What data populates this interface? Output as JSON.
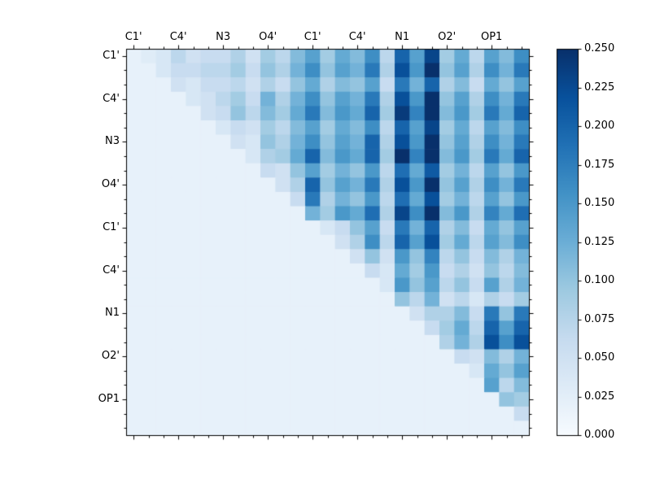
{
  "chart_data": {
    "type": "heatmap",
    "title": "",
    "xlabel": "",
    "ylabel": "",
    "x_labels": [
      "C1'",
      "C4'",
      "N3",
      "O4'",
      "C1'",
      "C4'",
      "N1",
      "O2'",
      "OP1"
    ],
    "y_labels": [
      "C1'",
      "C4'",
      "N3",
      "O4'",
      "C1'",
      "C4'",
      "N1",
      "O2'",
      "OP1"
    ],
    "grid_size": 27,
    "cells_per_label": 3,
    "vmin": 0.0,
    "vmax": 0.25,
    "colormap": "Blues",
    "structure": "upper-triangular",
    "colorbar_ticks": [
      "0.250",
      "0.225",
      "0.200",
      "0.175",
      "0.150",
      "0.125",
      "0.100",
      "0.075",
      "0.050",
      "0.025",
      "0.000"
    ],
    "colorbar_tick_values": [
      0.25,
      0.225,
      0.2,
      0.175,
      0.15,
      0.125,
      0.1,
      0.075,
      0.05,
      0.025,
      0.0
    ],
    "matrix": [
      [
        0.02,
        0.03,
        0.04,
        0.07,
        0.05,
        0.06,
        0.06,
        0.08,
        0.05,
        0.09,
        0.07,
        0.11,
        0.14,
        0.09,
        0.13,
        0.11,
        0.16,
        0.07,
        0.2,
        0.14,
        0.23,
        0.09,
        0.13,
        0.07,
        0.14,
        0.11,
        0.16
      ],
      [
        0.02,
        0.02,
        0.04,
        0.06,
        0.06,
        0.07,
        0.07,
        0.09,
        0.06,
        0.1,
        0.08,
        0.12,
        0.16,
        0.1,
        0.14,
        0.12,
        0.18,
        0.08,
        0.22,
        0.15,
        0.25,
        0.1,
        0.14,
        0.08,
        0.16,
        0.12,
        0.18
      ],
      [
        0.02,
        0.02,
        0.02,
        0.05,
        0.04,
        0.06,
        0.06,
        0.07,
        0.05,
        0.08,
        0.06,
        0.1,
        0.13,
        0.08,
        0.11,
        0.1,
        0.14,
        0.06,
        0.18,
        0.12,
        0.2,
        0.08,
        0.11,
        0.06,
        0.13,
        0.1,
        0.14
      ],
      [
        0.02,
        0.02,
        0.02,
        0.02,
        0.04,
        0.05,
        0.07,
        0.09,
        0.06,
        0.12,
        0.08,
        0.12,
        0.16,
        0.1,
        0.14,
        0.12,
        0.18,
        0.08,
        0.22,
        0.15,
        0.25,
        0.1,
        0.14,
        0.08,
        0.16,
        0.12,
        0.18
      ],
      [
        0.02,
        0.02,
        0.02,
        0.02,
        0.02,
        0.05,
        0.06,
        0.1,
        0.07,
        0.11,
        0.09,
        0.13,
        0.18,
        0.11,
        0.15,
        0.13,
        0.2,
        0.09,
        0.24,
        0.17,
        0.25,
        0.11,
        0.15,
        0.09,
        0.18,
        0.13,
        0.2
      ],
      [
        0.02,
        0.02,
        0.02,
        0.02,
        0.02,
        0.02,
        0.04,
        0.06,
        0.05,
        0.09,
        0.07,
        0.11,
        0.14,
        0.09,
        0.13,
        0.11,
        0.16,
        0.07,
        0.2,
        0.14,
        0.23,
        0.09,
        0.13,
        0.07,
        0.14,
        0.11,
        0.16
      ],
      [
        0.02,
        0.02,
        0.02,
        0.02,
        0.02,
        0.02,
        0.02,
        0.05,
        0.04,
        0.1,
        0.08,
        0.12,
        0.16,
        0.1,
        0.14,
        0.12,
        0.2,
        0.08,
        0.22,
        0.15,
        0.25,
        0.1,
        0.14,
        0.08,
        0.16,
        0.12,
        0.18
      ],
      [
        0.02,
        0.02,
        0.02,
        0.02,
        0.02,
        0.02,
        0.02,
        0.02,
        0.04,
        0.08,
        0.09,
        0.13,
        0.2,
        0.11,
        0.15,
        0.13,
        0.2,
        0.09,
        0.25,
        0.17,
        0.25,
        0.11,
        0.15,
        0.09,
        0.18,
        0.13,
        0.2
      ],
      [
        0.02,
        0.02,
        0.02,
        0.02,
        0.02,
        0.02,
        0.02,
        0.02,
        0.02,
        0.06,
        0.05,
        0.1,
        0.14,
        0.09,
        0.12,
        0.1,
        0.15,
        0.07,
        0.19,
        0.13,
        0.21,
        0.09,
        0.12,
        0.07,
        0.14,
        0.1,
        0.15
      ],
      [
        0.02,
        0.02,
        0.02,
        0.02,
        0.02,
        0.02,
        0.02,
        0.02,
        0.02,
        0.02,
        0.05,
        0.08,
        0.2,
        0.1,
        0.14,
        0.12,
        0.18,
        0.08,
        0.22,
        0.15,
        0.25,
        0.1,
        0.14,
        0.08,
        0.16,
        0.12,
        0.18
      ],
      [
        0.02,
        0.02,
        0.02,
        0.02,
        0.02,
        0.02,
        0.02,
        0.02,
        0.02,
        0.02,
        0.02,
        0.06,
        0.18,
        0.08,
        0.12,
        0.1,
        0.15,
        0.07,
        0.19,
        0.13,
        0.22,
        0.09,
        0.12,
        0.07,
        0.14,
        0.1,
        0.15
      ],
      [
        0.02,
        0.02,
        0.02,
        0.02,
        0.02,
        0.02,
        0.02,
        0.02,
        0.02,
        0.02,
        0.02,
        0.02,
        0.12,
        0.09,
        0.15,
        0.13,
        0.19,
        0.08,
        0.23,
        0.16,
        0.25,
        0.11,
        0.15,
        0.08,
        0.17,
        0.13,
        0.19
      ],
      [
        0.02,
        0.02,
        0.02,
        0.02,
        0.02,
        0.02,
        0.02,
        0.02,
        0.02,
        0.02,
        0.02,
        0.02,
        0.02,
        0.04,
        0.06,
        0.1,
        0.14,
        0.06,
        0.18,
        0.12,
        0.2,
        0.08,
        0.11,
        0.06,
        0.13,
        0.1,
        0.14
      ],
      [
        0.02,
        0.02,
        0.02,
        0.02,
        0.02,
        0.02,
        0.02,
        0.02,
        0.02,
        0.02,
        0.02,
        0.02,
        0.02,
        0.02,
        0.05,
        0.08,
        0.16,
        0.07,
        0.2,
        0.14,
        0.22,
        0.09,
        0.13,
        0.07,
        0.14,
        0.11,
        0.16
      ],
      [
        0.02,
        0.02,
        0.02,
        0.02,
        0.02,
        0.02,
        0.02,
        0.02,
        0.02,
        0.02,
        0.02,
        0.02,
        0.02,
        0.02,
        0.02,
        0.05,
        0.1,
        0.05,
        0.15,
        0.1,
        0.17,
        0.07,
        0.1,
        0.06,
        0.11,
        0.08,
        0.12
      ],
      [
        0.02,
        0.02,
        0.02,
        0.02,
        0.02,
        0.02,
        0.02,
        0.02,
        0.02,
        0.02,
        0.02,
        0.02,
        0.02,
        0.02,
        0.02,
        0.02,
        0.06,
        0.04,
        0.13,
        0.09,
        0.15,
        0.06,
        0.08,
        0.05,
        0.1,
        0.07,
        0.11
      ],
      [
        0.02,
        0.02,
        0.02,
        0.02,
        0.02,
        0.02,
        0.02,
        0.02,
        0.02,
        0.02,
        0.02,
        0.02,
        0.02,
        0.02,
        0.02,
        0.02,
        0.02,
        0.04,
        0.15,
        0.1,
        0.14,
        0.07,
        0.1,
        0.06,
        0.14,
        0.08,
        0.12
      ],
      [
        0.02,
        0.02,
        0.02,
        0.02,
        0.02,
        0.02,
        0.02,
        0.02,
        0.02,
        0.02,
        0.02,
        0.02,
        0.02,
        0.02,
        0.02,
        0.02,
        0.02,
        0.02,
        0.1,
        0.07,
        0.12,
        0.05,
        0.07,
        0.04,
        0.08,
        0.06,
        0.09
      ],
      [
        0.02,
        0.02,
        0.02,
        0.02,
        0.02,
        0.02,
        0.02,
        0.02,
        0.02,
        0.02,
        0.02,
        0.02,
        0.02,
        0.02,
        0.02,
        0.02,
        0.02,
        0.02,
        0.02,
        0.05,
        0.08,
        0.08,
        0.11,
        0.06,
        0.18,
        0.1,
        0.18
      ],
      [
        0.02,
        0.02,
        0.02,
        0.02,
        0.02,
        0.02,
        0.02,
        0.02,
        0.02,
        0.02,
        0.02,
        0.02,
        0.02,
        0.02,
        0.02,
        0.02,
        0.02,
        0.02,
        0.02,
        0.02,
        0.06,
        0.09,
        0.13,
        0.07,
        0.2,
        0.14,
        0.2
      ],
      [
        0.02,
        0.02,
        0.02,
        0.02,
        0.02,
        0.02,
        0.02,
        0.02,
        0.02,
        0.02,
        0.02,
        0.02,
        0.02,
        0.02,
        0.02,
        0.02,
        0.02,
        0.02,
        0.02,
        0.02,
        0.02,
        0.08,
        0.12,
        0.08,
        0.22,
        0.16,
        0.22
      ],
      [
        0.02,
        0.02,
        0.02,
        0.02,
        0.02,
        0.02,
        0.02,
        0.02,
        0.02,
        0.02,
        0.02,
        0.02,
        0.02,
        0.02,
        0.02,
        0.02,
        0.02,
        0.02,
        0.02,
        0.02,
        0.02,
        0.02,
        0.06,
        0.05,
        0.11,
        0.08,
        0.12
      ],
      [
        0.02,
        0.02,
        0.02,
        0.02,
        0.02,
        0.02,
        0.02,
        0.02,
        0.02,
        0.02,
        0.02,
        0.02,
        0.02,
        0.02,
        0.02,
        0.02,
        0.02,
        0.02,
        0.02,
        0.02,
        0.02,
        0.02,
        0.02,
        0.04,
        0.13,
        0.1,
        0.14
      ],
      [
        0.02,
        0.02,
        0.02,
        0.02,
        0.02,
        0.02,
        0.02,
        0.02,
        0.02,
        0.02,
        0.02,
        0.02,
        0.02,
        0.02,
        0.02,
        0.02,
        0.02,
        0.02,
        0.02,
        0.02,
        0.02,
        0.02,
        0.02,
        0.02,
        0.14,
        0.07,
        0.11
      ],
      [
        0.02,
        0.02,
        0.02,
        0.02,
        0.02,
        0.02,
        0.02,
        0.02,
        0.02,
        0.02,
        0.02,
        0.02,
        0.02,
        0.02,
        0.02,
        0.02,
        0.02,
        0.02,
        0.02,
        0.02,
        0.02,
        0.02,
        0.02,
        0.02,
        0.02,
        0.1,
        0.09
      ],
      [
        0.02,
        0.02,
        0.02,
        0.02,
        0.02,
        0.02,
        0.02,
        0.02,
        0.02,
        0.02,
        0.02,
        0.02,
        0.02,
        0.02,
        0.02,
        0.02,
        0.02,
        0.02,
        0.02,
        0.02,
        0.02,
        0.02,
        0.02,
        0.02,
        0.02,
        0.02,
        0.06
      ],
      [
        0.02,
        0.02,
        0.02,
        0.02,
        0.02,
        0.02,
        0.02,
        0.02,
        0.02,
        0.02,
        0.02,
        0.02,
        0.02,
        0.02,
        0.02,
        0.02,
        0.02,
        0.02,
        0.02,
        0.02,
        0.02,
        0.02,
        0.02,
        0.02,
        0.02,
        0.02,
        0.02
      ]
    ]
  },
  "colors": {
    "background": "#ffffff",
    "frame": "#000000",
    "tick": "#000000",
    "colormap_stops": [
      [
        0.0,
        "#f7fbff"
      ],
      [
        0.125,
        "#deebf7"
      ],
      [
        0.25,
        "#c6dbef"
      ],
      [
        0.375,
        "#9ecae1"
      ],
      [
        0.5,
        "#6baed6"
      ],
      [
        0.625,
        "#4292c6"
      ],
      [
        0.75,
        "#2171b5"
      ],
      [
        0.875,
        "#08519c"
      ],
      [
        1.0,
        "#08306b"
      ]
    ]
  }
}
